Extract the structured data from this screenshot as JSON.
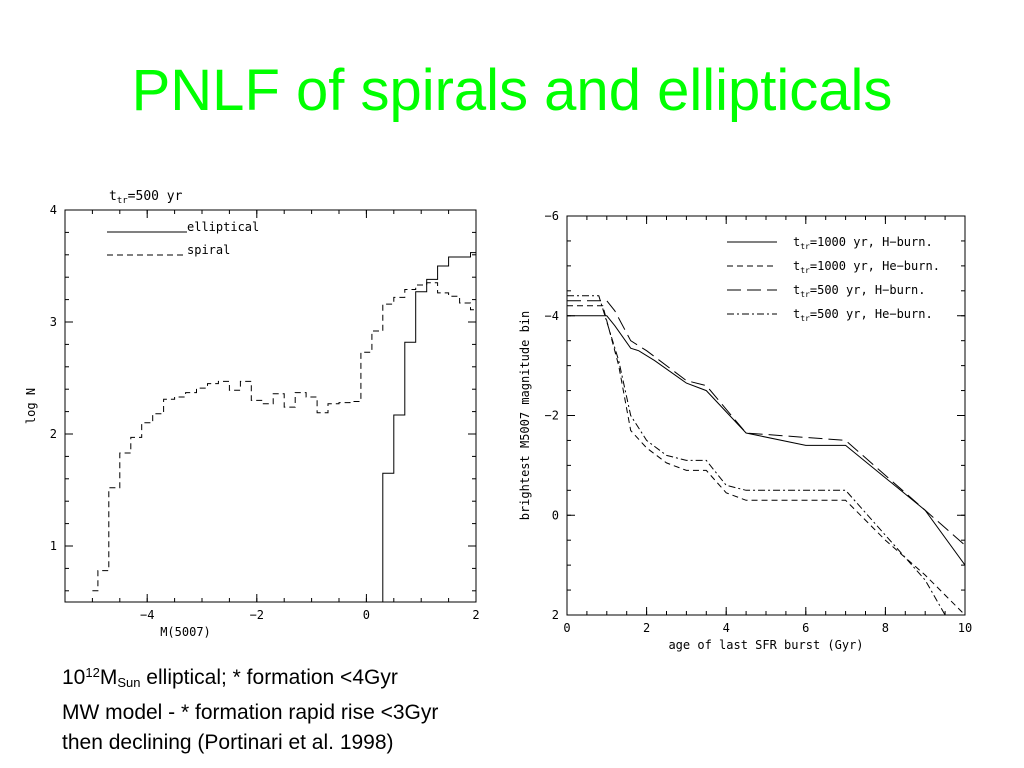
{
  "title": "PNLF of spirals and ellipticals",
  "colors": {
    "title": "#00ff00",
    "axes": "#000000"
  },
  "caption": {
    "line1_num": "10",
    "line1_exp": "12",
    "line1_m": "M",
    "line1_sub": "Sun",
    "line1_rest": " elliptical; * formation <4Gyr",
    "line2": "MW model - * formation rapid rise <3Gyr",
    "line3": "then declining (Portinari et al. 1998)"
  },
  "chart_data": [
    {
      "type": "line",
      "step": true,
      "title_prefix": "t",
      "title_sub": "tr",
      "title_rest": "=500 yr",
      "xlabel": "M(5007)",
      "ylabel": "log N",
      "xlim": [
        -5.5,
        2
      ],
      "ylim": [
        0.5,
        4
      ],
      "xticks": [
        -4,
        -2,
        0,
        2
      ],
      "xtick_labels": [
        "−4",
        "−2",
        "0",
        "2"
      ],
      "yticks": [
        1,
        2,
        3,
        4
      ],
      "ytick_labels": [
        "1",
        "2",
        "3",
        "4"
      ],
      "legend_position": "top-left",
      "series": [
        {
          "name": "elliptical",
          "dash": "solid",
          "x": [
            0.3,
            0.3,
            0.5,
            0.7,
            0.9,
            1.1,
            1.3,
            1.5,
            1.9,
            2.0
          ],
          "y": [
            0.5,
            1.65,
            2.17,
            2.82,
            3.27,
            3.38,
            3.5,
            3.58,
            3.62,
            3.88
          ]
        },
        {
          "name": "spiral",
          "dash": "dashed",
          "x": [
            -5.0,
            -4.9,
            -4.7,
            -4.5,
            -4.3,
            -4.1,
            -3.9,
            -3.7,
            -3.5,
            -3.3,
            -3.1,
            -2.9,
            -2.7,
            -2.5,
            -2.3,
            -2.1,
            -1.9,
            -1.7,
            -1.5,
            -1.3,
            -1.1,
            -0.9,
            -0.7,
            -0.5,
            -0.3,
            -0.1,
            0.1,
            0.3,
            0.5,
            0.7,
            0.9,
            1.1,
            1.3,
            1.5,
            1.7,
            1.9,
            2.0
          ],
          "y": [
            0.6,
            0.78,
            1.52,
            1.83,
            1.97,
            2.1,
            2.18,
            2.31,
            2.33,
            2.37,
            2.41,
            2.45,
            2.47,
            2.39,
            2.47,
            2.3,
            2.27,
            2.36,
            2.24,
            2.37,
            2.33,
            2.19,
            2.27,
            2.28,
            2.29,
            2.73,
            2.92,
            3.16,
            3.22,
            3.29,
            3.33,
            3.35,
            3.26,
            3.23,
            3.17,
            3.11,
            3.0
          ]
        }
      ]
    },
    {
      "type": "line",
      "xlabel": "age of last SFR burst (Gyr)",
      "ylabel": "brightest M5007 magnitude bin",
      "xlim": [
        0,
        10
      ],
      "ylim": [
        2,
        -6
      ],
      "y_inverted": true,
      "xticks": [
        0,
        2,
        4,
        6,
        8,
        10
      ],
      "xtick_labels": [
        "0",
        "2",
        "4",
        "6",
        "8",
        "10"
      ],
      "yticks": [
        2,
        0,
        -2,
        -4,
        -6
      ],
      "ytick_labels": [
        "2",
        "0",
        "−2",
        "−4",
        "−6"
      ],
      "legend_position": "top-right",
      "series": [
        {
          "name_prefix": "t",
          "name_sub": "tr",
          "name_rest": "=1000 yr, H−burn.",
          "dash": "solid",
          "x": [
            0,
            1.0,
            1.2,
            1.6,
            1.8,
            2.2,
            3.0,
            3.5,
            4.5,
            6.0,
            7.0,
            9.0,
            10
          ],
          "y": [
            -4.0,
            -4.0,
            -3.8,
            -3.35,
            -3.3,
            -3.1,
            -2.65,
            -2.5,
            -1.65,
            -1.4,
            -1.4,
            -0.1,
            1.0
          ]
        },
        {
          "name_prefix": "t",
          "name_sub": "tr",
          "name_rest": "=1000 yr, He−burn.",
          "dash": "dashed",
          "x": [
            0,
            0.9,
            1.3,
            1.6,
            2.0,
            2.5,
            3.0,
            3.5,
            4.0,
            4.5,
            7.0,
            8.0,
            9.0,
            10
          ],
          "y": [
            -4.2,
            -4.2,
            -3.0,
            -1.7,
            -1.35,
            -1.05,
            -0.9,
            -0.9,
            -0.45,
            -0.3,
            -0.3,
            0.5,
            1.2,
            2.0
          ]
        },
        {
          "name_prefix": "t",
          "name_sub": "tr",
          "name_rest": "=500 yr, H−burn.",
          "dash": "longdash",
          "x": [
            0,
            1.0,
            1.2,
            1.6,
            2.0,
            3.0,
            3.5,
            4.5,
            7.0,
            9.0,
            10
          ],
          "y": [
            -4.3,
            -4.3,
            -4.1,
            -3.5,
            -3.3,
            -2.7,
            -2.6,
            -1.65,
            -1.5,
            -0.1,
            0.6
          ]
        },
        {
          "name_prefix": "t",
          "name_sub": "tr",
          "name_rest": "=500 yr, He−burn.",
          "dash": "dashdot",
          "x": [
            0,
            0.8,
            1.3,
            1.6,
            2.0,
            2.5,
            3.0,
            3.5,
            4.0,
            4.5,
            7.0,
            8.0,
            9.0,
            9.5
          ],
          "y": [
            -4.4,
            -4.4,
            -3.1,
            -2.0,
            -1.5,
            -1.2,
            -1.1,
            -1.1,
            -0.6,
            -0.5,
            -0.5,
            0.4,
            1.3,
            2.0
          ]
        }
      ]
    }
  ]
}
